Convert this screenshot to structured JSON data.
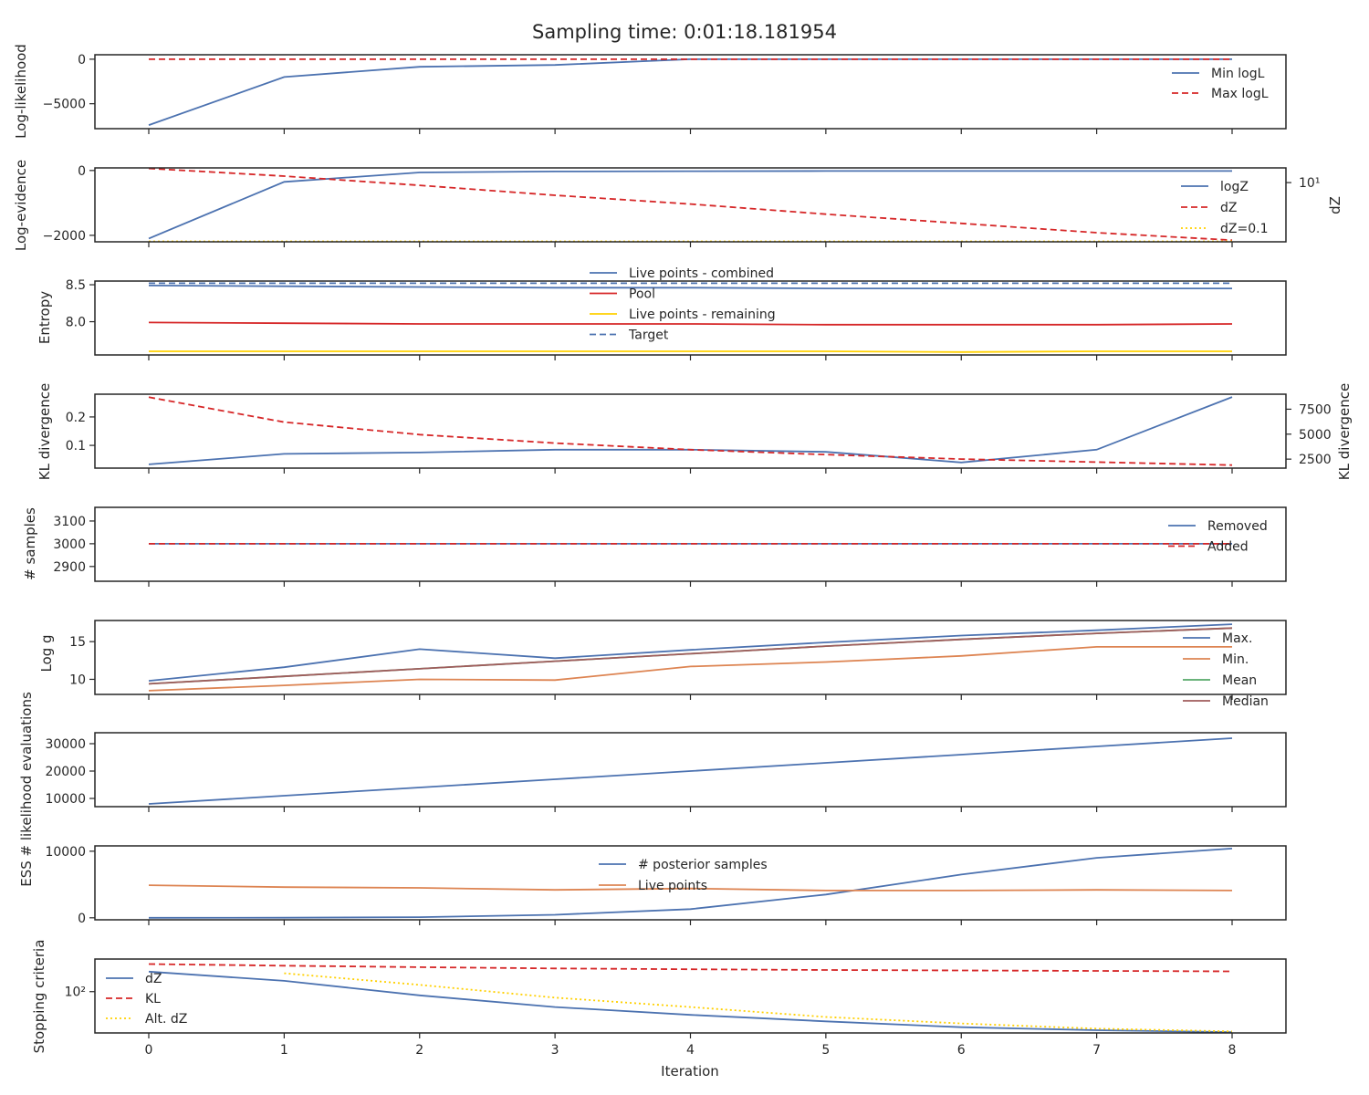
{
  "chart_data": {
    "type": "line",
    "title": "Sampling time: 0:01:18.181954",
    "xlabel": "Iteration",
    "x": [
      0,
      1,
      2,
      3,
      4,
      5,
      6,
      7,
      8
    ],
    "x_ticks": [
      "0",
      "1",
      "2",
      "3",
      "4",
      "5",
      "6",
      "7",
      "8"
    ],
    "colors": {
      "blue": "#4c72b0",
      "orange": "#dd8452",
      "green": "#55a868",
      "red": "#c44e52",
      "redDashed": "#d62728",
      "yellow": "#ffd000",
      "brown": "#a05c5c"
    },
    "panels": [
      {
        "ylabel": "Log-likelihood",
        "ylim": [
          -7800,
          500
        ],
        "yticks": [
          0,
          -5000
        ],
        "ytick_labels": [
          "0",
          "−5000"
        ],
        "legend_position": "right",
        "series": [
          {
            "name": "Min logL",
            "style": "solid",
            "color": "#4c72b0",
            "values": [
              -7400,
              -2000,
              -850,
              -650,
              0,
              0,
              0,
              0,
              0
            ]
          },
          {
            "name": "Max logL",
            "style": "dashed",
            "color": "#d62728",
            "values": [
              0,
              0,
              0,
              0,
              0,
              0,
              0,
              0,
              0
            ]
          }
        ]
      },
      {
        "ylabel": "Log-evidence",
        "ylim": [
          -2200,
          80
        ],
        "yticks": [
          0,
          -2000
        ],
        "ytick_labels": [
          "0",
          "−2000"
        ],
        "ylabel_right": "dZ",
        "y2scale": "log",
        "y2lim": [
          4.2,
          12.4
        ],
        "y2ticks": [
          10
        ],
        "y2tick_labels": [
          "10¹"
        ],
        "legend_position": "right",
        "series": [
          {
            "name": "logZ",
            "style": "solid",
            "color": "#4c72b0",
            "axis": "left",
            "values": [
              -2100,
              -350,
              -60,
              -30,
              -20,
              -15,
              -15,
              -15,
              -15
            ]
          },
          {
            "name": "dZ",
            "style": "dashed",
            "color": "#d62728",
            "axis": "right",
            "values": [
              12.3,
              11.0,
              9.6,
              8.3,
              7.3,
              6.3,
              5.5,
              4.8,
              4.3
            ]
          },
          {
            "name": "dZ=0.1",
            "style": "dotted",
            "color": "#ffd000",
            "axis": "right",
            "values": [
              4.23,
              4.23,
              4.23,
              4.23,
              4.23,
              4.23,
              4.23,
              4.23,
              4.23
            ]
          }
        ]
      },
      {
        "ylabel": "Entropy",
        "ylim": [
          7.55,
          8.55
        ],
        "yticks": [
          8.5,
          8.0
        ],
        "ytick_labels": [
          "8.5",
          "8.0"
        ],
        "legend_position": "upper center",
        "series": [
          {
            "name": "Live points - combined",
            "style": "solid",
            "color": "#4c72b0",
            "values": [
              8.49,
              8.48,
              8.47,
              8.46,
              8.46,
              8.45,
              8.45,
              8.45,
              8.45
            ]
          },
          {
            "name": "Pool",
            "style": "solid",
            "color": "#d62728",
            "values": [
              7.99,
              7.98,
              7.97,
              7.97,
              7.97,
              7.96,
              7.96,
              7.96,
              7.97
            ]
          },
          {
            "name": "Live points - remaining",
            "style": "solid",
            "color": "#ffd000",
            "values": [
              7.6,
              7.6,
              7.6,
              7.6,
              7.6,
              7.6,
              7.59,
              7.6,
              7.6
            ]
          },
          {
            "name": "Target",
            "style": "dashed",
            "color": "#4c72b0",
            "values": [
              8.52,
              8.52,
              8.52,
              8.52,
              8.52,
              8.52,
              8.52,
              8.52,
              8.52
            ]
          }
        ]
      },
      {
        "ylabel": "KL divergence",
        "ylim": [
          0.02,
          0.28
        ],
        "yticks": [
          0.2,
          0.1
        ],
        "ytick_labels": [
          "0.2",
          "0.1"
        ],
        "ylabel_right": "KL divergence",
        "y2lim": [
          1600,
          9000
        ],
        "y2ticks": [
          7500,
          5000,
          2500
        ],
        "y2tick_labels": [
          "7500",
          "5000",
          "2500"
        ],
        "series": [
          {
            "name": "",
            "style": "solid",
            "color": "#4c72b0",
            "axis": "left",
            "values": [
              0.033,
              0.07,
              0.075,
              0.085,
              0.085,
              0.077,
              0.04,
              0.085,
              0.27
            ]
          },
          {
            "name": "",
            "style": "dashed",
            "color": "#d62728",
            "axis": "right",
            "values": [
              8700,
              6200,
              4950,
              4100,
              3450,
              2950,
              2500,
              2200,
              1900
            ]
          }
        ]
      },
      {
        "ylabel": "# samples",
        "ylim": [
          2835,
          3160
        ],
        "yticks": [
          3100,
          3000,
          2900
        ],
        "ytick_labels": [
          "3100",
          "3000",
          "2900"
        ],
        "legend_position": "right",
        "series": [
          {
            "name": "Removed",
            "style": "solid",
            "color": "#4c72b0",
            "values": [
              3000,
              3000,
              3000,
              3000,
              3000,
              3000,
              3000,
              3000,
              3000
            ]
          },
          {
            "name": "Added",
            "style": "dashed",
            "color": "#d62728",
            "values": [
              3000,
              3000,
              3000,
              3000,
              3000,
              3000,
              3000,
              3000,
              3000
            ]
          }
        ]
      },
      {
        "ylabel": "Log g",
        "ylim": [
          8.0,
          17.8
        ],
        "yticks": [
          15,
          10
        ],
        "ytick_labels": [
          "15",
          "10"
        ],
        "legend_position": "right",
        "series": [
          {
            "name": "Max.",
            "style": "solid",
            "color": "#4c72b0",
            "values": [
              9.8,
              11.6,
              14.0,
              12.8,
              13.9,
              14.9,
              15.8,
              16.5,
              17.3
            ]
          },
          {
            "name": "Min.",
            "style": "solid",
            "color": "#dd8452",
            "values": [
              8.5,
              9.2,
              10.0,
              9.9,
              11.7,
              12.3,
              13.1,
              14.3,
              14.3
            ]
          },
          {
            "name": "Mean",
            "style": "solid",
            "color": "#55a868",
            "values": [
              9.4,
              10.4,
              11.4,
              12.4,
              13.4,
              14.4,
              15.3,
              16.1,
              16.8
            ]
          },
          {
            "name": "Median",
            "style": "solid",
            "color": "#a05c5c",
            "values": [
              9.4,
              10.4,
              11.4,
              12.4,
              13.4,
              14.4,
              15.3,
              16.1,
              16.8
            ]
          }
        ]
      },
      {
        "ylabel": "# likelihood evaluations",
        "ylim": [
          7000,
          34000
        ],
        "yticks": [
          30000,
          20000,
          10000
        ],
        "ytick_labels": [
          "30000",
          "20000",
          "10000"
        ],
        "series": [
          {
            "name": "",
            "style": "solid",
            "color": "#4c72b0",
            "values": [
              8000,
              11000,
              14000,
              17000,
              20000,
              23000,
              26000,
              29000,
              32000
            ]
          }
        ]
      },
      {
        "ylabel": "ESS",
        "ylim": [
          -300,
          10800
        ],
        "yticks": [
          10000,
          0
        ],
        "ytick_labels": [
          "10000",
          "0"
        ],
        "legend_position": "upper center",
        "series": [
          {
            "name": "# posterior samples",
            "style": "solid",
            "color": "#4c72b0",
            "values": [
              0,
              20,
              100,
              450,
              1300,
              3500,
              6500,
              9000,
              10400
            ]
          },
          {
            "name": "Live points",
            "style": "solid",
            "color": "#dd8452",
            "values": [
              4900,
              4600,
              4500,
              4200,
              4400,
              4100,
              4100,
              4200,
              4100
            ]
          }
        ]
      },
      {
        "ylabel": "Stopping criteria",
        "yscale": "log",
        "ylim": [
          8.5,
          700
        ],
        "yticks": [
          100
        ],
        "ytick_labels": [
          "10²"
        ],
        "legend_position": "left",
        "series": [
          {
            "name": "dZ",
            "style": "solid",
            "color": "#4c72b0",
            "values": [
              330,
              190,
              80,
              40,
              25,
              17,
              12,
              10,
              8.9
            ]
          },
          {
            "name": "KL",
            "style": "dashed",
            "color": "#d62728",
            "values": [
              520,
              470,
              430,
              400,
              380,
              365,
              355,
              345,
              335
            ]
          },
          {
            "name": "Alt. dZ",
            "style": "dotted",
            "color": "#ffd000",
            "values": [
              null,
              300,
              150,
              70,
              40,
              22,
              15,
              11,
              9.3
            ]
          }
        ]
      }
    ]
  }
}
